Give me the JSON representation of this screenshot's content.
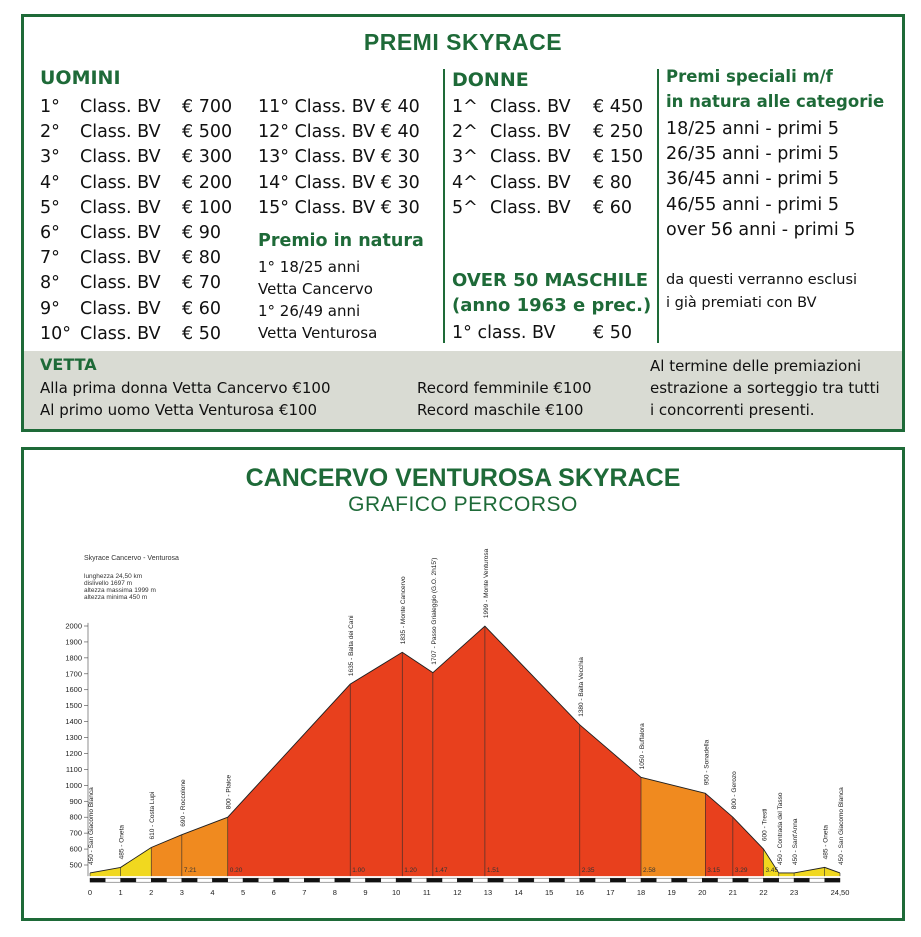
{
  "prizes": {
    "title": "PREMI SKYRACE",
    "men": {
      "heading": "UOMINI",
      "left": [
        {
          "pos": "1°",
          "cls": "Class. BV",
          "amt": "€ 700"
        },
        {
          "pos": "2°",
          "cls": "Class. BV",
          "amt": "€ 500"
        },
        {
          "pos": "3°",
          "cls": "Class. BV",
          "amt": "€ 300"
        },
        {
          "pos": "4°",
          "cls": "Class. BV",
          "amt": "€ 200"
        },
        {
          "pos": "5°",
          "cls": "Class. BV",
          "amt": "€ 100"
        },
        {
          "pos": "6°",
          "cls": "Class. BV",
          "amt": "€ 90"
        },
        {
          "pos": "7°",
          "cls": "Class. BV",
          "amt": "€ 80"
        },
        {
          "pos": "8°",
          "cls": "Class. BV",
          "amt": "€ 70"
        },
        {
          "pos": "9°",
          "cls": "Class. BV",
          "amt": "€ 60"
        },
        {
          "pos": "10°",
          "cls": "Class. BV",
          "amt": "€ 50"
        }
      ],
      "right": [
        "11° Class. BV € 40",
        "12° Class. BV € 40",
        "13° Class. BV € 30",
        "14° Class. BV € 30",
        "15° Class. BV € 30"
      ],
      "nature_heading": "Premio in natura",
      "nature_lines": [
        "1° 18/25 anni",
        "Vetta Cancervo",
        "1° 26/49 anni",
        "Vetta Venturosa"
      ]
    },
    "women": {
      "heading": "DONNE",
      "rows": [
        {
          "pos": "1^",
          "cls": "Class. BV",
          "amt": "€ 450"
        },
        {
          "pos": "2^",
          "cls": "Class. BV",
          "amt": "€ 250"
        },
        {
          "pos": "3^",
          "cls": "Class. BV",
          "amt": "€ 150"
        },
        {
          "pos": "4^",
          "cls": "Class. BV",
          "amt": "€ 80"
        },
        {
          "pos": "5^",
          "cls": "Class. BV",
          "amt": "€ 60"
        }
      ],
      "over50_heading_1": "OVER 50 MASCHILE",
      "over50_heading_2": "(anno 1963 e prec.)",
      "over50_row": {
        "pos": "1° class. BV",
        "amt": "€ 50"
      }
    },
    "special": {
      "heading_1": "Premi speciali m/f",
      "heading_2": "in natura alle categorie",
      "rows": [
        "18/25 anni - primi 5",
        "26/35 anni - primi 5",
        "36/45 anni - primi 5",
        "46/55 anni - primi 5",
        "over 56 anni - primi 5"
      ],
      "note_1": "da questi verranno esclusi",
      "note_2": "i già premiati con BV"
    },
    "vetta": {
      "heading": "VETTA",
      "line_1": "Alla prima donna Vetta Cancervo €100",
      "line_2": "Al primo uomo Vetta Venturosa €100",
      "record_1": "Record femminile €100",
      "record_2": "Record maschile €100",
      "draw_1": "Al termine delle premiazioni",
      "draw_2": "estrazione a sorteggio tra tutti",
      "draw_3": "i concorrenti presenti."
    }
  },
  "profile": {
    "title": "CANCERVO VENTUROSA SKYRACE",
    "subtitle": "GRAFICO PERCORSO",
    "chart_name": "Skyrace Cancervo - Venturosa",
    "info": [
      "lunghezza 24,50 km",
      "dislivello 1697 m",
      "altezza massima 1999 m",
      "altezza minima 450 m"
    ]
  },
  "chart_data": {
    "type": "area",
    "xlabel": "",
    "ylabel": "",
    "x_ticks": [
      "0",
      "1",
      "2",
      "3",
      "4",
      "5",
      "6",
      "7",
      "8",
      "9",
      "10",
      "11",
      "12",
      "13",
      "14",
      "15",
      "16",
      "17",
      "18",
      "19",
      "20",
      "21",
      "22",
      "23",
      "24,50"
    ],
    "y_ticks": [
      500,
      600,
      700,
      800,
      900,
      1000,
      1100,
      1200,
      1300,
      1400,
      1500,
      1600,
      1700,
      1800,
      1900,
      2000
    ],
    "xlim": [
      0,
      24.5
    ],
    "ylim": [
      400,
      2050
    ],
    "points": [
      {
        "x": 0,
        "y": 450,
        "label": "450 - San Giacomo Blanca"
      },
      {
        "x": 1,
        "y": 485,
        "label": "485 - Oneta"
      },
      {
        "x": 2,
        "y": 610,
        "label": "610 - Costa Lupi"
      },
      {
        "x": 3,
        "y": 690,
        "label": "690 - Roccolone"
      },
      {
        "x": 4.5,
        "y": 800,
        "label": "800 - Plaice"
      },
      {
        "x": 8.5,
        "y": 1635,
        "label": "1635 - Baita dei Cani"
      },
      {
        "x": 10.2,
        "y": 1835,
        "label": "1835 - Monte Cancervo"
      },
      {
        "x": 11.2,
        "y": 1707,
        "label": "1707 - Passo Grialeggio (G.O. 2h15')"
      },
      {
        "x": 12.9,
        "y": 1999,
        "label": "1999 - Monte Venturosa"
      },
      {
        "x": 16,
        "y": 1380,
        "label": "1380 - Baita Vecchia"
      },
      {
        "x": 18,
        "y": 1050,
        "label": "1050 - Buffalora"
      },
      {
        "x": 20.1,
        "y": 950,
        "label": "950 - Sonadella"
      },
      {
        "x": 21,
        "y": 800,
        "label": "800 - Gerozo"
      },
      {
        "x": 22,
        "y": 600,
        "label": "600 - Tresti"
      },
      {
        "x": 22.5,
        "y": 450,
        "label": "450 - Contrada del Tasso"
      },
      {
        "x": 23,
        "y": 450,
        "label": "450 - Sant'Anna"
      },
      {
        "x": 24,
        "y": 485,
        "label": "485 - Oneta"
      },
      {
        "x": 24.5,
        "y": 450,
        "label": "450 - San Giacomo Blanca"
      }
    ],
    "time_marks": [
      {
        "x": 4.5,
        "text": "0.20"
      },
      {
        "x": 3,
        "text": "7.21"
      },
      {
        "x": 8.5,
        "text": "1.00"
      },
      {
        "x": 10.2,
        "text": "1.20"
      },
      {
        "x": 11.2,
        "text": "1.47"
      },
      {
        "x": 12.9,
        "text": "1.51"
      },
      {
        "x": 16,
        "text": "2.35"
      },
      {
        "x": 18,
        "text": "2.58"
      },
      {
        "x": 20.1,
        "text": "3.15"
      },
      {
        "x": 21,
        "text": "3.29"
      },
      {
        "x": 22,
        "text": "3.45"
      }
    ],
    "colors": {
      "low": "#f1d81f",
      "mid": "#f08a1f",
      "high": "#e8401d",
      "line": "#202020"
    }
  }
}
